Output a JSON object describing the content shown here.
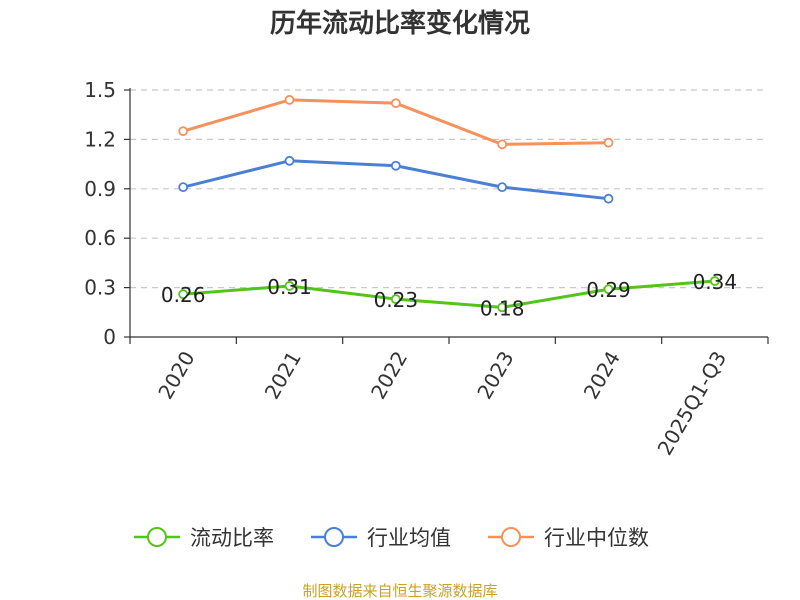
{
  "chart_data": {
    "type": "line",
    "title": "历年流动比率变化情况",
    "categories": [
      "2020",
      "2021",
      "2022",
      "2023",
      "2024",
      "2025Q1-Q3"
    ],
    "ylim": [
      0,
      1.5
    ],
    "yticks": [
      "0",
      "0.3",
      "0.6",
      "0.9",
      "1.2",
      "1.5"
    ],
    "ytick_values": [
      0,
      0.3,
      0.6,
      0.9,
      1.2,
      1.5
    ],
    "grid": true,
    "legend_position": "bottom",
    "series": [
      {
        "name": "流动比率",
        "color": "#52c41a",
        "values": [
          0.26,
          0.31,
          0.23,
          0.18,
          0.29,
          0.34
        ],
        "labels": [
          "0.26",
          "0.31",
          "0.23",
          "0.18",
          "0.29",
          "0.34"
        ]
      },
      {
        "name": "行业均值",
        "color": "#4a7fd6",
        "values": [
          0.91,
          1.07,
          1.04,
          0.91,
          0.84,
          null
        ]
      },
      {
        "name": "行业中位数",
        "color": "#f5915a",
        "values": [
          1.25,
          1.44,
          1.42,
          1.17,
          1.18,
          null
        ]
      }
    ]
  },
  "source": {
    "text": "制图数据来自恒生聚源数据库",
    "color": "#c9a227"
  }
}
